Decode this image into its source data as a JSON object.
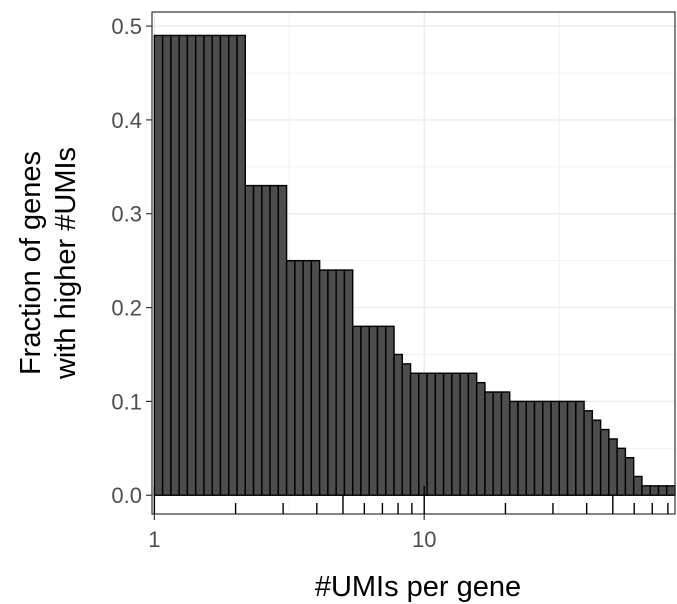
{
  "chart_data": {
    "type": "bar",
    "title": "",
    "xlabel": "#UMIs per gene",
    "ylabel": [
      "Fraction of genes",
      "with higher #UMIs"
    ],
    "x_scale": "log10",
    "xlim": [
      0.98,
      85
    ],
    "ylim": [
      -0.02,
      0.515
    ],
    "x_ticks": [
      {
        "value": 1,
        "label": "1"
      },
      {
        "value": 10,
        "label": "10"
      }
    ],
    "y_ticks": [
      {
        "value": 0.0,
        "label": "0.0"
      },
      {
        "value": 0.1,
        "label": "0.1"
      },
      {
        "value": 0.2,
        "label": "0.2"
      },
      {
        "value": 0.3,
        "label": "0.3"
      },
      {
        "value": 0.4,
        "label": "0.4"
      },
      {
        "value": 0.5,
        "label": "0.5"
      }
    ],
    "grid": true,
    "bar_fill": "#4d4d4d",
    "bar_outline": "#000000",
    "bar_values": [
      0.49,
      0.49,
      0.49,
      0.49,
      0.49,
      0.49,
      0.49,
      0.49,
      0.49,
      0.49,
      0.49,
      0.33,
      0.33,
      0.33,
      0.33,
      0.33,
      0.25,
      0.25,
      0.25,
      0.25,
      0.24,
      0.24,
      0.24,
      0.24,
      0.18,
      0.18,
      0.18,
      0.18,
      0.18,
      0.15,
      0.14,
      0.13,
      0.13,
      0.13,
      0.13,
      0.13,
      0.13,
      0.13,
      0.13,
      0.12,
      0.11,
      0.11,
      0.11,
      0.1,
      0.1,
      0.1,
      0.1,
      0.1,
      0.1,
      0.1,
      0.1,
      0.1,
      0.09,
      0.08,
      0.07,
      0.06,
      0.05,
      0.04,
      0.02,
      0.01,
      0.01,
      0.01,
      0.01
    ]
  }
}
